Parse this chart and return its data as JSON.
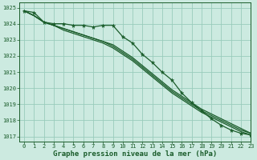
{
  "title": "Graphe pression niveau de la mer (hPa)",
  "bg_color": "#cceae0",
  "grid_color": "#99ccbb",
  "line_color": "#1a5c2a",
  "xlim": [
    -0.5,
    23
  ],
  "ylim": [
    1016.7,
    1025.3
  ],
  "yticks": [
    1017,
    1018,
    1019,
    1020,
    1021,
    1022,
    1023,
    1024,
    1025
  ],
  "xticks": [
    0,
    1,
    2,
    3,
    4,
    5,
    6,
    7,
    8,
    9,
    10,
    11,
    12,
    13,
    14,
    15,
    16,
    17,
    18,
    19,
    20,
    21,
    22,
    23
  ],
  "series_smooth": [
    [
      1024.8,
      1024.5,
      1024.1,
      1023.9,
      1023.7,
      1023.5,
      1023.3,
      1023.1,
      1022.9,
      1022.6,
      1022.2,
      1021.8,
      1021.3,
      1020.8,
      1020.3,
      1019.8,
      1019.4,
      1019.0,
      1018.6,
      1018.3,
      1018.0,
      1017.7,
      1017.4,
      1017.2
    ],
    [
      1024.8,
      1024.5,
      1024.1,
      1023.9,
      1023.6,
      1023.4,
      1023.2,
      1023.0,
      1022.8,
      1022.5,
      1022.1,
      1021.7,
      1021.2,
      1020.7,
      1020.2,
      1019.7,
      1019.3,
      1018.9,
      1018.5,
      1018.2,
      1017.9,
      1017.6,
      1017.3,
      1017.1
    ],
    [
      1024.8,
      1024.5,
      1024.1,
      1023.9,
      1023.7,
      1023.5,
      1023.3,
      1023.1,
      1022.9,
      1022.7,
      1022.3,
      1021.9,
      1021.4,
      1020.9,
      1020.4,
      1019.9,
      1019.5,
      1019.1,
      1018.7,
      1018.4,
      1018.1,
      1017.8,
      1017.5,
      1017.2
    ]
  ],
  "series_marked": [
    1024.8,
    1024.7,
    1024.1,
    1024.0,
    1024.0,
    1023.9,
    1023.9,
    1023.8,
    1023.9,
    1023.9,
    1023.2,
    1022.8,
    1022.1,
    1021.6,
    1021.0,
    1020.5,
    1019.7,
    1019.1,
    1018.6,
    1018.1,
    1017.7,
    1017.4,
    1017.2,
    1017.1
  ],
  "title_fontsize": 6.5,
  "tick_fontsize": 5.0
}
